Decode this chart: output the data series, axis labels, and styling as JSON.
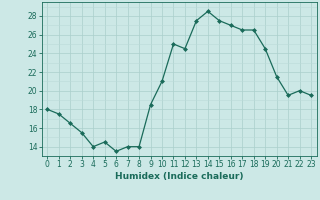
{
  "x": [
    0,
    1,
    2,
    3,
    4,
    5,
    6,
    7,
    8,
    9,
    10,
    11,
    12,
    13,
    14,
    15,
    16,
    17,
    18,
    19,
    20,
    21,
    22,
    23
  ],
  "y": [
    18,
    17.5,
    16.5,
    15.5,
    14,
    14.5,
    13.5,
    14,
    14,
    18.5,
    21,
    25,
    24.5,
    27.5,
    28.5,
    27.5,
    27,
    26.5,
    26.5,
    24.5,
    21.5,
    19.5,
    20,
    19.5
  ],
  "line_color": "#1a6b5a",
  "marker_color": "#1a6b5a",
  "bg_color": "#cce8e6",
  "major_grid_color": "#aacfcc",
  "minor_grid_color": "#bbdbd9",
  "axis_color": "#1a6b5a",
  "xlabel": "Humidex (Indice chaleur)",
  "yticks": [
    14,
    16,
    18,
    20,
    22,
    24,
    26,
    28
  ],
  "xticks": [
    0,
    1,
    2,
    3,
    4,
    5,
    6,
    7,
    8,
    9,
    10,
    11,
    12,
    13,
    14,
    15,
    16,
    17,
    18,
    19,
    20,
    21,
    22,
    23
  ],
  "ylim": [
    13.0,
    29.5
  ],
  "xlim": [
    -0.5,
    23.5
  ]
}
